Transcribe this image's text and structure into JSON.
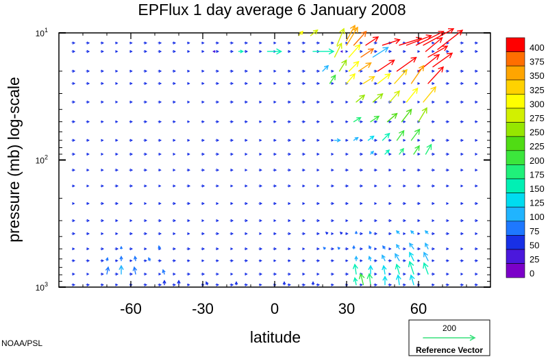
{
  "chart_data": {
    "type": "vector-field",
    "title": "EPFlux  1 day average  6 January   2008",
    "xlabel": "latitude",
    "ylabel": "pressure (mb)  log-scale",
    "xlim": [
      -90,
      90
    ],
    "x_ticks": [
      {
        "value": -60,
        "label": "-60"
      },
      {
        "value": -30,
        "label": "-30"
      },
      {
        "value": 0,
        "label": "0"
      },
      {
        "value": 30,
        "label": "30"
      },
      {
        "value": 60,
        "label": "60"
      }
    ],
    "ylim": [
      1000,
      10
    ],
    "y_scale": "log",
    "y_ticks": [
      {
        "value": 10,
        "base": "10",
        "exp": "1"
      },
      {
        "value": 100,
        "base": "10",
        "exp": "2"
      },
      {
        "value": 1000,
        "base": "10",
        "exp": "3"
      }
    ],
    "colorbar": {
      "levels": [
        0,
        25,
        50,
        75,
        100,
        125,
        150,
        175,
        200,
        225,
        250,
        275,
        300,
        325,
        350,
        375,
        400
      ],
      "colors": [
        "#7b00c8",
        "#4b18dc",
        "#1830e6",
        "#1e78ff",
        "#20b4ff",
        "#00dcf0",
        "#00f0b4",
        "#20f07a",
        "#3ce63c",
        "#50dc14",
        "#96e600",
        "#d2f000",
        "#ffff00",
        "#ffd200",
        "#ffa500",
        "#ff6e00",
        "#ff0000"
      ]
    },
    "reference_vector": {
      "label": "Reference Vector",
      "magnitude": "200",
      "color": "#36e07a"
    },
    "grid": false,
    "vectors": [
      {
        "lat": 52,
        "p": 12.5,
        "u": 32,
        "v": 10,
        "mag": 410
      },
      {
        "lat": 55,
        "p": 12.5,
        "u": 36,
        "v": 14,
        "mag": 410
      },
      {
        "lat": 59,
        "p": 12.5,
        "u": 40,
        "v": 20,
        "mag": 410
      },
      {
        "lat": 62,
        "p": 12.5,
        "u": 44,
        "v": 24,
        "mag": 400
      },
      {
        "lat": 45,
        "p": 12.5,
        "u": 25,
        "v": 8,
        "mag": 410
      },
      {
        "lat": 38,
        "p": 12.5,
        "u": 18,
        "v": 12,
        "mag": 400
      },
      {
        "lat": 33,
        "p": 12.5,
        "u": 18,
        "v": 20,
        "mag": 380
      },
      {
        "lat": 30,
        "p": 12.5,
        "u": 16,
        "v": 26,
        "mag": 360
      },
      {
        "lat": 26,
        "p": 12.5,
        "u": 10,
        "v": 24,
        "mag": 280
      },
      {
        "lat": 15,
        "p": 10.5,
        "u": 10,
        "v": 8,
        "mag": 290
      },
      {
        "lat": 10,
        "p": 10.5,
        "u": 6,
        "v": 6,
        "mag": 300
      },
      {
        "lat": 68,
        "p": 13.5,
        "u": 36,
        "v": 28,
        "mag": 400
      },
      {
        "lat": 66,
        "p": 18.5,
        "u": 28,
        "v": 20,
        "mag": 400
      },
      {
        "lat": 64,
        "p": 15.5,
        "u": 28,
        "v": 16,
        "mag": 400
      },
      {
        "lat": 41,
        "p": 15.5,
        "u": 22,
        "v": 14,
        "mag": 110
      },
      {
        "lat": 36,
        "p": 15.5,
        "u": 18,
        "v": 12,
        "mag": 380
      },
      {
        "lat": 31,
        "p": 15.5,
        "u": 16,
        "v": 18,
        "mag": 320
      },
      {
        "lat": 25,
        "p": 15.5,
        "u": 10,
        "v": 20,
        "mag": 280
      },
      {
        "lat": 30,
        "p": 11.5,
        "u": 12,
        "v": 22,
        "mag": 350
      },
      {
        "lat": -25,
        "p": 14,
        "u": -2,
        "v": 0,
        "mag": 30
      },
      {
        "lat": 28,
        "p": 14,
        "u": -1,
        "v": 0,
        "mag": 30
      },
      {
        "lat": -15,
        "p": 14,
        "u": 6,
        "v": 0,
        "mag": 150
      },
      {
        "lat": -3,
        "p": 14,
        "u": 20,
        "v": 0,
        "mag": 150
      },
      {
        "lat": 16,
        "p": 14,
        "u": 30,
        "v": 0,
        "mag": 150
      },
      {
        "lat": 63,
        "p": 14,
        "u": 24,
        "v": 20,
        "mag": 410
      },
      {
        "lat": 43,
        "p": 20,
        "u": 24,
        "v": 16,
        "mag": 400
      },
      {
        "lat": 51,
        "p": 20,
        "u": 28,
        "v": 20,
        "mag": 410
      },
      {
        "lat": 60,
        "p": 20,
        "u": 30,
        "v": 24,
        "mag": 410
      },
      {
        "lat": 35,
        "p": 20,
        "u": 18,
        "v": 12,
        "mag": 360
      },
      {
        "lat": 31,
        "p": 20,
        "u": 14,
        "v": 14,
        "mag": 310
      },
      {
        "lat": 27,
        "p": 20,
        "u": 10,
        "v": 16,
        "mag": 250
      },
      {
        "lat": 20,
        "p": 20,
        "u": 8,
        "v": 8,
        "mag": 120
      },
      {
        "lat": 64,
        "p": 25,
        "u": 22,
        "v": 24,
        "mag": 400
      },
      {
        "lat": 57,
        "p": 25,
        "u": 18,
        "v": 26,
        "mag": 360
      },
      {
        "lat": 50,
        "p": 25,
        "u": 18,
        "v": 20,
        "mag": 330
      },
      {
        "lat": 43,
        "p": 25,
        "u": 18,
        "v": 14,
        "mag": 320
      },
      {
        "lat": 37,
        "p": 25,
        "u": 16,
        "v": 10,
        "mag": 340
      },
      {
        "lat": 30,
        "p": 25,
        "u": 12,
        "v": 14,
        "mag": 300
      },
      {
        "lat": 23,
        "p": 25,
        "u": 8,
        "v": 12,
        "mag": 220
      },
      {
        "lat": 62,
        "p": 35,
        "u": 18,
        "v": 22,
        "mag": 330
      },
      {
        "lat": 55,
        "p": 35,
        "u": 16,
        "v": 20,
        "mag": 300
      },
      {
        "lat": 48,
        "p": 35,
        "u": 14,
        "v": 16,
        "mag": 280
      },
      {
        "lat": 41,
        "p": 35,
        "u": 14,
        "v": 12,
        "mag": 270
      },
      {
        "lat": 34,
        "p": 35,
        "u": 12,
        "v": 10,
        "mag": 250
      },
      {
        "lat": 60,
        "p": 50,
        "u": 12,
        "v": 20,
        "mag": 250
      },
      {
        "lat": 53,
        "p": 50,
        "u": 14,
        "v": 18,
        "mag": 240
      },
      {
        "lat": 47,
        "p": 50,
        "u": 14,
        "v": 12,
        "mag": 230
      },
      {
        "lat": 40,
        "p": 50,
        "u": 12,
        "v": 8,
        "mag": 200
      },
      {
        "lat": 33,
        "p": 50,
        "u": 10,
        "v": 6,
        "mag": 180
      },
      {
        "lat": 57,
        "p": 70,
        "u": 12,
        "v": 16,
        "mag": 210
      },
      {
        "lat": 51,
        "p": 70,
        "u": 10,
        "v": 14,
        "mag": 200
      },
      {
        "lat": 45,
        "p": 70,
        "u": 10,
        "v": 10,
        "mag": 170
      },
      {
        "lat": 39,
        "p": 70,
        "u": 8,
        "v": 6,
        "mag": 140
      },
      {
        "lat": 33,
        "p": 70,
        "u": 6,
        "v": 4,
        "mag": 110
      },
      {
        "lat": 25,
        "p": 70,
        "u": 8,
        "v": 0,
        "mag": 120
      },
      {
        "lat": 63,
        "p": 90,
        "u": 8,
        "v": 14,
        "mag": 190
      },
      {
        "lat": 58,
        "p": 90,
        "u": 8,
        "v": 12,
        "mag": 200
      },
      {
        "lat": 52,
        "p": 90,
        "u": 6,
        "v": 8,
        "mag": 180
      },
      {
        "lat": 46,
        "p": 90,
        "u": 6,
        "v": 6,
        "mag": 150
      },
      {
        "lat": 40,
        "p": 90,
        "u": 4,
        "v": 4,
        "mag": 120
      },
      {
        "lat": 64,
        "p": 380,
        "u": -4,
        "v": 4,
        "mag": 100
      },
      {
        "lat": 58,
        "p": 380,
        "u": -4,
        "v": 4,
        "mag": 110
      },
      {
        "lat": 52,
        "p": 380,
        "u": -4,
        "v": 4,
        "mag": 100
      },
      {
        "lat": 40,
        "p": 380,
        "u": -1,
        "v": 3,
        "mag": 80
      },
      {
        "lat": 34,
        "p": 380,
        "u": 0,
        "v": 3,
        "mag": 80
      },
      {
        "lat": 28,
        "p": 380,
        "u": -2,
        "v": 2,
        "mag": 70
      },
      {
        "lat": 22,
        "p": 380,
        "u": -2,
        "v": 2,
        "mag": 70
      },
      {
        "lat": 64,
        "p": 500,
        "u": -4,
        "v": 8,
        "mag": 100
      },
      {
        "lat": 58,
        "p": 500,
        "u": -6,
        "v": 8,
        "mag": 110
      },
      {
        "lat": 52,
        "p": 500,
        "u": -4,
        "v": 6,
        "mag": 100
      },
      {
        "lat": 46,
        "p": 500,
        "u": -3,
        "v": 4,
        "mag": 90
      },
      {
        "lat": 40,
        "p": 500,
        "u": -2,
        "v": 4,
        "mag": 85
      },
      {
        "lat": 33,
        "p": 500,
        "u": 0,
        "v": 4,
        "mag": 80
      },
      {
        "lat": 27,
        "p": 500,
        "u": -2,
        "v": 2,
        "mag": 80
      },
      {
        "lat": 21,
        "p": 500,
        "u": -2,
        "v": 2,
        "mag": 75
      },
      {
        "lat": -48,
        "p": 500,
        "u": -1,
        "v": 4,
        "mag": 80
      },
      {
        "lat": -64,
        "p": 500,
        "u": 0,
        "v": 3,
        "mag": 75
      },
      {
        "lat": 64,
        "p": 620,
        "u": -6,
        "v": 12,
        "mag": 120
      },
      {
        "lat": 58,
        "p": 620,
        "u": -6,
        "v": 12,
        "mag": 130
      },
      {
        "lat": 52,
        "p": 620,
        "u": -6,
        "v": 10,
        "mag": 120
      },
      {
        "lat": 46,
        "p": 620,
        "u": -4,
        "v": 8,
        "mag": 110
      },
      {
        "lat": 40,
        "p": 620,
        "u": -2,
        "v": 6,
        "mag": 100
      },
      {
        "lat": 34,
        "p": 620,
        "u": 0,
        "v": 6,
        "mag": 100
      },
      {
        "lat": -64,
        "p": 620,
        "u": 0,
        "v": 6,
        "mag": 85
      },
      {
        "lat": -58,
        "p": 620,
        "u": -1,
        "v": 6,
        "mag": 90
      },
      {
        "lat": -52,
        "p": 620,
        "u": -2,
        "v": 4,
        "mag": 85
      },
      {
        "lat": -70,
        "p": 620,
        "u": 1,
        "v": 4,
        "mag": 75
      },
      {
        "lat": 64,
        "p": 790,
        "u": -6,
        "v": 16,
        "mag": 150
      },
      {
        "lat": 58,
        "p": 790,
        "u": -6,
        "v": 18,
        "mag": 160
      },
      {
        "lat": 52,
        "p": 790,
        "u": -4,
        "v": 14,
        "mag": 150
      },
      {
        "lat": 46,
        "p": 790,
        "u": -2,
        "v": 12,
        "mag": 140
      },
      {
        "lat": 40,
        "p": 790,
        "u": 0,
        "v": 12,
        "mag": 130
      },
      {
        "lat": 34,
        "p": 790,
        "u": -2,
        "v": 14,
        "mag": 160
      },
      {
        "lat": -70,
        "p": 790,
        "u": 2,
        "v": 10,
        "mag": 95
      },
      {
        "lat": -64,
        "p": 790,
        "u": 0,
        "v": 12,
        "mag": 100
      },
      {
        "lat": -58,
        "p": 790,
        "u": -2,
        "v": 10,
        "mag": 95
      },
      {
        "lat": -46,
        "p": 790,
        "u": -2,
        "v": 6,
        "mag": 85
      },
      {
        "lat": 58,
        "p": 960,
        "u": -4,
        "v": 14,
        "mag": 140
      },
      {
        "lat": 52,
        "p": 960,
        "u": -2,
        "v": 14,
        "mag": 130
      },
      {
        "lat": 46,
        "p": 960,
        "u": 0,
        "v": 12,
        "mag": 130
      },
      {
        "lat": 40,
        "p": 960,
        "u": -2,
        "v": 16,
        "mag": 180
      },
      {
        "lat": 37,
        "p": 960,
        "u": -4,
        "v": 16,
        "mag": 200
      },
      {
        "lat": 34,
        "p": 960,
        "u": -2,
        "v": 10,
        "mag": 150
      },
      {
        "lat": -46,
        "p": 960,
        "u": 0,
        "v": 6,
        "mag": 70
      },
      {
        "lat": -40,
        "p": 960,
        "u": 0,
        "v": 6,
        "mag": 70
      },
      {
        "lat": -28,
        "p": 960,
        "u": -2,
        "v": 4,
        "mag": 70
      },
      {
        "lat": -16,
        "p": 960,
        "u": 0,
        "v": 4,
        "mag": 65
      },
      {
        "lat": 16,
        "p": 960,
        "u": 0,
        "v": 4,
        "mag": 65
      },
      {
        "lat": 4,
        "p": 960,
        "u": 0,
        "v": 4,
        "mag": 65
      }
    ]
  },
  "credit": "NOAA/PSL"
}
